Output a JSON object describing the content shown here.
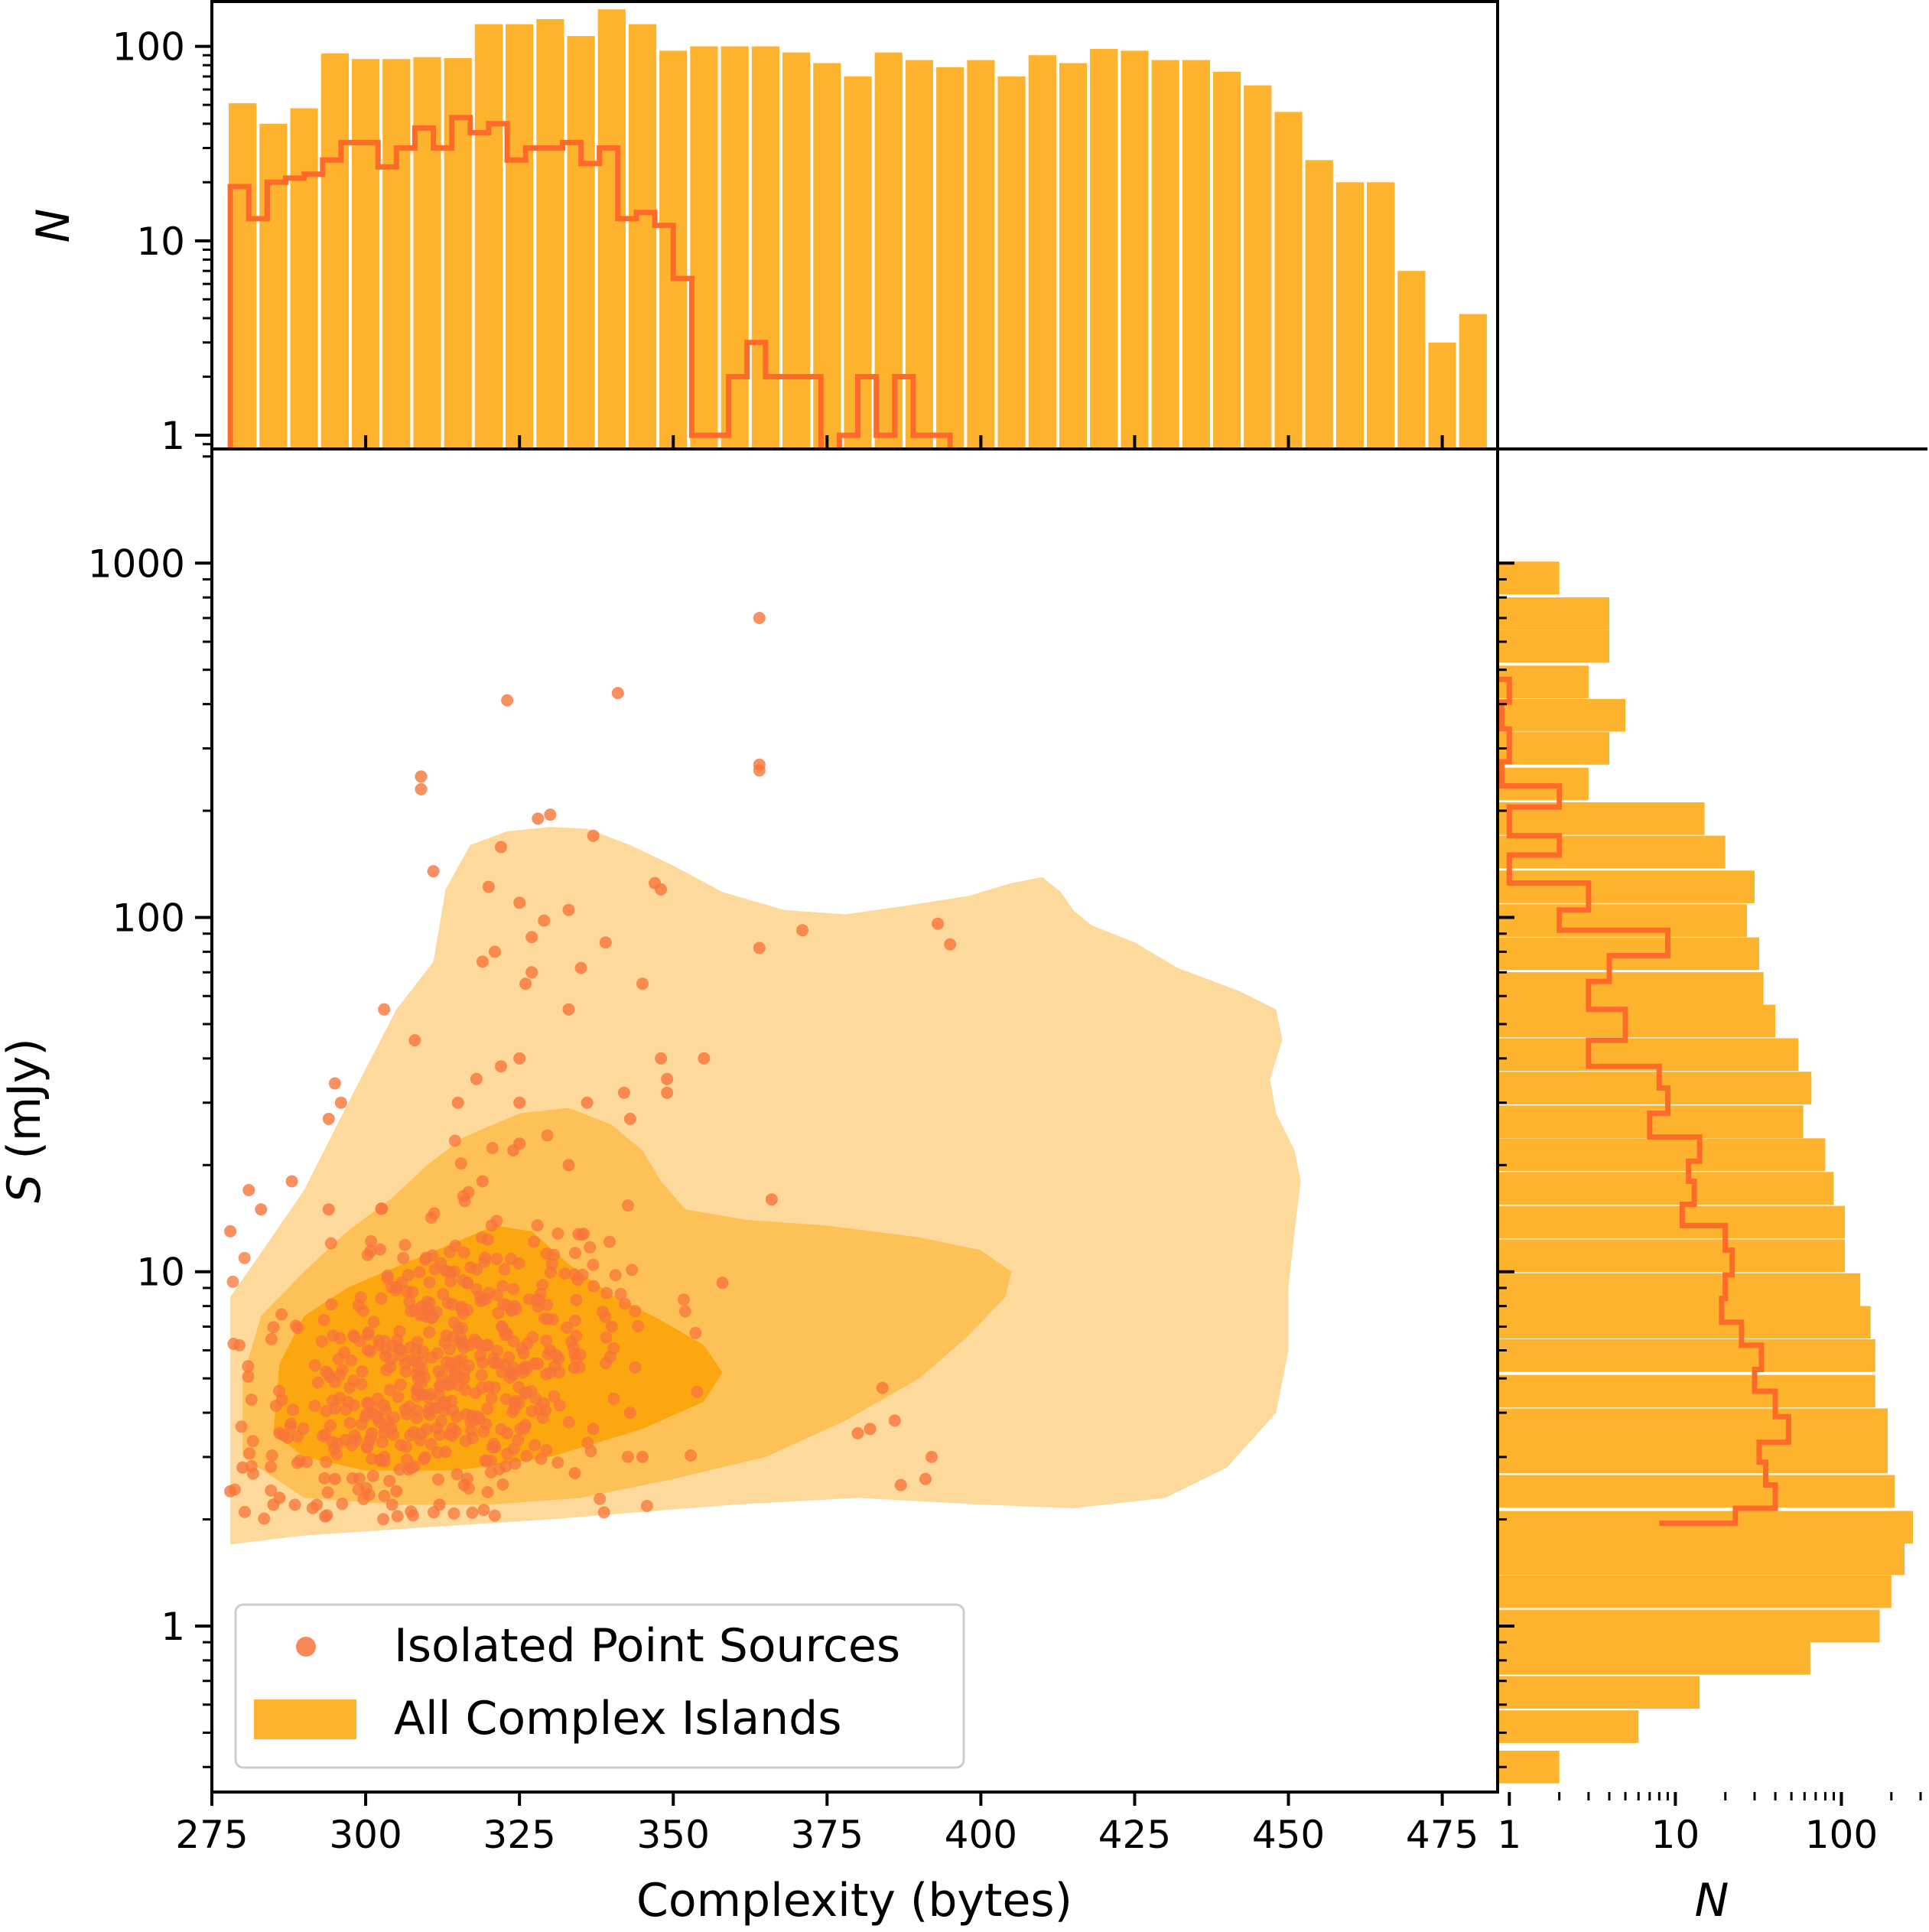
{
  "colors": {
    "bar": "#fdb32d",
    "step": "#fd6a2a",
    "scatter": "#f77439",
    "kde_outer": "#fdda9b",
    "kde_mid": "#fdc158",
    "kde_inner": "#fda710"
  },
  "legend": {
    "position": "lower-left",
    "items": [
      {
        "label": "Isolated Point Sources",
        "marker": "circle"
      },
      {
        "label": "All Complex Islands",
        "marker": "patch"
      }
    ]
  },
  "chart_data": [
    {
      "panel": "main",
      "type": "scatter",
      "xlabel": "Complexity (bytes)",
      "ylabel": "S (mJy)",
      "xlim": [
        275,
        484
      ],
      "ylim": [
        0.34,
        2100
      ],
      "yscale": "log",
      "xticks": [
        "275",
        "300",
        "325",
        "350",
        "375",
        "400",
        "425",
        "450",
        "475"
      ],
      "yticks": [
        "1",
        "10",
        "100",
        "1000"
      ],
      "series": [
        {
          "name": "Isolated Point Sources",
          "kind": "scatter",
          "x": [
            364,
            341,
            323,
            364,
            364,
            309,
            309,
            328,
            330,
            322,
            337,
            311,
            347,
            320,
            348,
            325,
            333,
            329,
            364,
            371,
            393,
            395,
            327,
            339,
            321,
            319,
            335,
            327,
            326,
            345,
            303,
            333,
            308,
            348,
            355,
            336,
            349,
            315,
            325,
            342,
            318,
            322,
            349,
            343,
            325,
            324,
            333,
            296,
            325,
            319,
            294,
            278,
            283,
            281,
            294,
            295,
            288,
            366,
            358,
            384,
            382,
            380,
            386,
            387,
            391,
            392,
            334,
            345,
            305,
            312,
            316,
            295,
            285,
            286,
            278,
            280,
            286,
            303,
            313,
            321,
            323,
            337,
            343,
            301,
            303,
            309,
            316,
            328,
            331,
            330,
            340
          ],
          "y": [
            700,
            430,
            410,
            270,
            260,
            250,
            230,
            190,
            195,
            158,
            170,
            135,
            125,
            122,
            120,
            110,
            105,
            98,
            82,
            92,
            96,
            84,
            88,
            85,
            80,
            75,
            72,
            70,
            65,
            65,
            55,
            55,
            45,
            40,
            40,
            30,
            35,
            30,
            30,
            32,
            35,
            38,
            32,
            27,
            23,
            22,
            20,
            30,
            40,
            18,
            15,
            13,
            15,
            17,
            27,
            34,
            18,
            16,
            9.3,
            4.7,
            3.6,
            3.5,
            3.8,
            2.5,
            2.6,
            3.0,
            2.7,
            3.0,
            2.4,
            2.2,
            2.5,
            2.6,
            2.2,
            2.3,
            2.4,
            2.8,
            3.5,
            3.0,
            3.1,
            3.2,
            3.5,
            3.6,
            4.0,
            3.5,
            4.2,
            4.5,
            5.0,
            5.5,
            5.8,
            6.0,
            7.0
          ]
        },
        {
          "name": "All Complex Islands",
          "kind": "kde-filled-contours",
          "levels": 3,
          "outer_contour": [
            [
              278,
              1.7
            ],
            [
              290,
              1.8
            ],
            [
              310,
              1.9
            ],
            [
              330,
              2.0
            ],
            [
              345,
              2.1
            ],
            [
              360,
              2.2
            ],
            [
              380,
              2.3
            ],
            [
              400,
              2.2
            ],
            [
              415,
              2.15
            ],
            [
              430,
              2.3
            ],
            [
              440,
              2.8
            ],
            [
              448,
              4
            ],
            [
              450,
              6
            ],
            [
              450,
              9
            ],
            [
              451,
              13
            ],
            [
              452,
              18
            ],
            [
              451,
              22
            ],
            [
              448,
              28
            ],
            [
              447,
              35
            ],
            [
              449,
              45
            ],
            [
              448,
              55
            ],
            [
              442,
              62
            ],
            [
              432,
              72
            ],
            [
              425,
              85
            ],
            [
              418,
              95
            ],
            [
              415,
              105
            ],
            [
              413,
              118
            ],
            [
              410,
              130
            ],
            [
              405,
              125
            ],
            [
              398,
              115
            ],
            [
              388,
              108
            ],
            [
              378,
              102
            ],
            [
              368,
              105
            ],
            [
              358,
              118
            ],
            [
              350,
              140
            ],
            [
              343,
              160
            ],
            [
              336,
              178
            ],
            [
              330,
              180
            ],
            [
              323,
              175
            ],
            [
              317,
              160
            ],
            [
              313,
              120
            ],
            [
              311,
              75
            ],
            [
              305,
              55
            ],
            [
              298,
              32
            ],
            [
              290,
              17
            ],
            [
              284,
              12
            ],
            [
              278,
              8.5
            ],
            [
              278,
              1.7
            ]
          ],
          "mid_contour": [
            [
              280,
              3.0
            ],
            [
              290,
              2.3
            ],
            [
              305,
              2.2
            ],
            [
              320,
              2.2
            ],
            [
              335,
              2.3
            ],
            [
              350,
              2.6
            ],
            [
              365,
              3.0
            ],
            [
              378,
              3.8
            ],
            [
              390,
              5
            ],
            [
              398,
              6.6
            ],
            [
              404,
              8.5
            ],
            [
              405,
              10
            ],
            [
              400,
              11.5
            ],
            [
              390,
              12.5
            ],
            [
              375,
              13.5
            ],
            [
              362,
              14
            ],
            [
              352,
              15
            ],
            [
              348,
              18
            ],
            [
              345,
              22
            ],
            [
              340,
              26
            ],
            [
              333,
              29
            ],
            [
              325,
              28
            ],
            [
              316,
              24
            ],
            [
              310,
              20
            ],
            [
              304,
              16
            ],
            [
              297,
              13
            ],
            [
              290,
              10
            ],
            [
              283,
              7.5
            ],
            [
              280,
              5
            ],
            [
              280,
              3.0
            ]
          ],
          "inner_contour": [
            [
              285,
              3.5
            ],
            [
              290,
              3.0
            ],
            [
              300,
              2.75
            ],
            [
              315,
              2.75
            ],
            [
              330,
              3.0
            ],
            [
              345,
              3.6
            ],
            [
              355,
              4.3
            ],
            [
              358,
              5.2
            ],
            [
              355,
              6.2
            ],
            [
              348,
              7.3
            ],
            [
              340,
              8.6
            ],
            [
              333,
              10.5
            ],
            [
              327,
              13
            ],
            [
              321,
              13.5
            ],
            [
              314,
              12
            ],
            [
              306,
              10.5
            ],
            [
              297,
              9.0
            ],
            [
              290,
              7.5
            ],
            [
              286,
              5.5
            ],
            [
              285,
              3.5
            ]
          ]
        }
      ]
    },
    {
      "panel": "top",
      "type": "bar",
      "ylabel": "N",
      "yscale": "log",
      "ylim": [
        0.85,
        170
      ],
      "yticks": [
        "1",
        "10",
        "100"
      ],
      "bin_width": 5,
      "series": [
        {
          "name": "All Complex Islands",
          "kind": "bar",
          "x": [
            280,
            285,
            290,
            295,
            300,
            305,
            310,
            315,
            320,
            325,
            330,
            335,
            340,
            345,
            350,
            355,
            360,
            365,
            370,
            375,
            380,
            385,
            390,
            395,
            400,
            405,
            410,
            415,
            420,
            425,
            430,
            435,
            440,
            445,
            450,
            455,
            460,
            465,
            470,
            475,
            480
          ],
          "values": [
            51,
            40,
            48,
            92,
            86,
            86,
            88,
            87,
            130,
            130,
            138,
            113,
            155,
            130,
            95,
            100,
            100,
            100,
            93,
            82,
            70,
            93,
            85,
            78,
            85,
            70,
            90,
            82,
            97,
            95,
            85,
            85,
            74,
            63,
            46,
            26,
            20,
            20,
            7,
            3,
            4.2
          ]
        },
        {
          "name": "Isolated Point Sources",
          "kind": "step",
          "edges": [
            278,
            281,
            284,
            287,
            290,
            293,
            296,
            299,
            302,
            305,
            308,
            311,
            314,
            317,
            320,
            323,
            326,
            329,
            332,
            335,
            338,
            341,
            344,
            347,
            350,
            353,
            356,
            359,
            362,
            365,
            368,
            371,
            374,
            377,
            380,
            383,
            386,
            389,
            392,
            395,
            398
          ],
          "values": [
            19,
            13,
            20,
            21,
            22,
            26,
            32,
            32,
            24,
            30,
            38,
            30,
            43,
            36,
            40,
            26,
            30,
            30,
            32,
            25,
            30,
            13,
            14,
            12,
            6.4,
            1.0,
            1.0,
            2.0,
            3.0,
            2.0,
            2.0,
            2.0,
            0.5,
            1.0,
            2.0,
            1.0,
            2.0,
            1.0,
            1.0,
            0.5
          ]
        }
      ]
    },
    {
      "panel": "right",
      "type": "bar",
      "orientation": "horizontal",
      "xlabel": "N",
      "xscale": "log",
      "xlim": [
        0.85,
        330
      ],
      "xticks": [
        "1",
        "10",
        "100"
      ],
      "series": [
        {
          "name": "All Complex Islands",
          "kind": "barh",
          "y": [
            908,
            720,
            582,
            462,
            372,
            300,
            238,
            190,
            153,
            122,
            98,
            79,
            63,
            51,
            41,
            33,
            26.5,
            21.4,
            17.2,
            13.8,
            11.1,
            8.9,
            7.2,
            5.8,
            4.6,
            3.7,
            3.0,
            2.4,
            1.9,
            1.55,
            1.25,
            1.0,
            0.81,
            0.65,
            0.52,
            0.4
          ],
          "values": [
            2,
            4,
            4,
            3,
            5,
            4,
            3,
            15,
            20,
            30,
            27,
            32,
            34,
            40,
            55,
            66,
            59,
            80,
            90,
            105,
            105,
            130,
            150,
            160,
            160,
            190,
            190,
            210,
            270,
            240,
            200,
            170,
            65,
            14,
            6,
            2
          ]
        },
        {
          "name": "Isolated Point Sources",
          "kind": "step",
          "note": "horizontal step histogram"
        }
      ]
    }
  ]
}
